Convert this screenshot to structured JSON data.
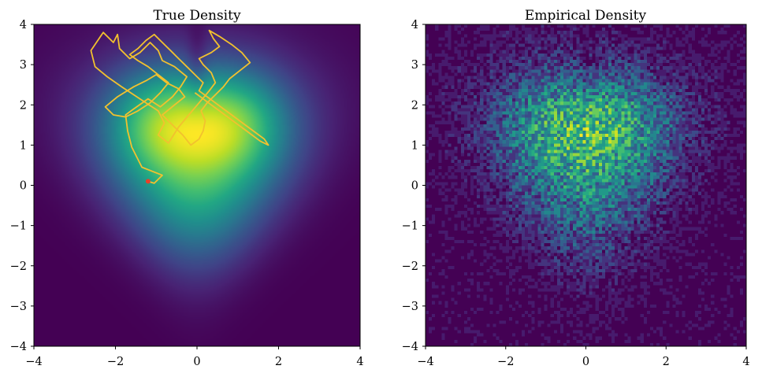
{
  "chart_data": [
    {
      "type": "heatmap",
      "title": "True Density",
      "xlim": [
        -4,
        4
      ],
      "ylim": [
        -4,
        4
      ],
      "xticks": [
        "−4",
        "−2",
        "0",
        "2",
        "4"
      ],
      "yticks": [
        "4",
        "3",
        "2",
        "1",
        "0",
        "−1",
        "−2",
        "−3",
        "−4"
      ],
      "colormap": "viridis",
      "overlay": {
        "type": "line",
        "color": "#f2c12e",
        "start_marker_color": "#e8402a",
        "x": [
          -1.2,
          -1.05,
          -0.85,
          -1.35,
          -1.6,
          -1.7,
          -1.75,
          -1.55,
          -1.2,
          -0.9,
          -0.6,
          -0.4,
          -0.25,
          -0.55,
          -0.85,
          -0.95,
          -1.15,
          -1.4,
          -1.65,
          -1.9,
          -1.95,
          -2.05,
          -2.3,
          -2.6,
          -2.5,
          -2.2,
          -1.85,
          -1.55,
          -1.25,
          -0.95,
          -0.8,
          -0.95,
          -0.7,
          -0.45,
          -0.2,
          0.05,
          0.3,
          0.45,
          0.35,
          0.15,
          0.05,
          0.35,
          0.55,
          0.4,
          0.3,
          0.55,
          0.85,
          1.1,
          1.3,
          1.05,
          0.8,
          0.65,
          0.45,
          0.25,
          0.1,
          0.2,
          0.15,
          0.05,
          -0.15,
          -0.35,
          -0.6,
          -0.85,
          -0.55,
          -0.3,
          -0.45,
          -0.75,
          -1.0,
          -1.25,
          -1.55,
          -1.95,
          -2.25,
          -2.05,
          -1.75,
          -1.45,
          -1.15,
          -0.9,
          -0.7,
          -0.95,
          -1.2,
          -1.45,
          -1.65,
          -1.45,
          -1.25,
          -1.05,
          -0.85,
          -0.65,
          -0.45,
          -0.25,
          -0.05,
          0.15,
          0.05,
          0.25,
          0.45,
          0.65,
          0.85,
          1.05,
          1.25,
          1.45,
          1.65,
          1.75,
          1.55,
          1.35,
          1.15,
          0.95,
          0.75,
          0.55,
          0.35,
          0.15,
          -0.05
        ],
        "y": [
          0.1,
          0.05,
          0.25,
          0.45,
          0.95,
          1.35,
          1.75,
          1.9,
          2.15,
          1.95,
          2.2,
          2.45,
          2.7,
          2.95,
          3.1,
          3.35,
          3.55,
          3.3,
          3.15,
          3.4,
          3.75,
          3.55,
          3.8,
          3.35,
          2.95,
          2.7,
          2.45,
          2.25,
          2.05,
          1.85,
          1.55,
          1.25,
          1.05,
          1.45,
          1.75,
          2.05,
          2.35,
          2.55,
          2.8,
          3.0,
          3.15,
          3.3,
          3.45,
          3.65,
          3.85,
          3.7,
          3.5,
          3.3,
          3.05,
          2.85,
          2.65,
          2.45,
          2.25,
          2.05,
          1.85,
          1.6,
          1.35,
          1.15,
          1.0,
          1.25,
          1.5,
          1.75,
          2.0,
          2.2,
          2.4,
          2.55,
          2.75,
          2.6,
          2.45,
          2.2,
          1.95,
          1.75,
          1.7,
          1.85,
          2.05,
          2.3,
          2.55,
          2.75,
          2.95,
          3.1,
          3.25,
          3.4,
          3.6,
          3.75,
          3.55,
          3.35,
          3.15,
          2.95,
          2.75,
          2.55,
          2.35,
          2.2,
          2.05,
          1.9,
          1.75,
          1.6,
          1.45,
          1.3,
          1.15,
          1.0,
          1.1,
          1.25,
          1.4,
          1.55,
          1.7,
          1.85,
          2.0,
          2.15,
          2.3
        ]
      }
    },
    {
      "type": "heatmap",
      "title": "Empirical Density",
      "xlim": [
        -4,
        4
      ],
      "ylim": [
        -4,
        4
      ],
      "xticks": [
        "−4",
        "−2",
        "0",
        "2",
        "4"
      ],
      "yticks": [
        "4",
        "3",
        "2",
        "1",
        "0",
        "−1",
        "−2",
        "−3",
        "−4"
      ],
      "colormap": "viridis"
    }
  ]
}
